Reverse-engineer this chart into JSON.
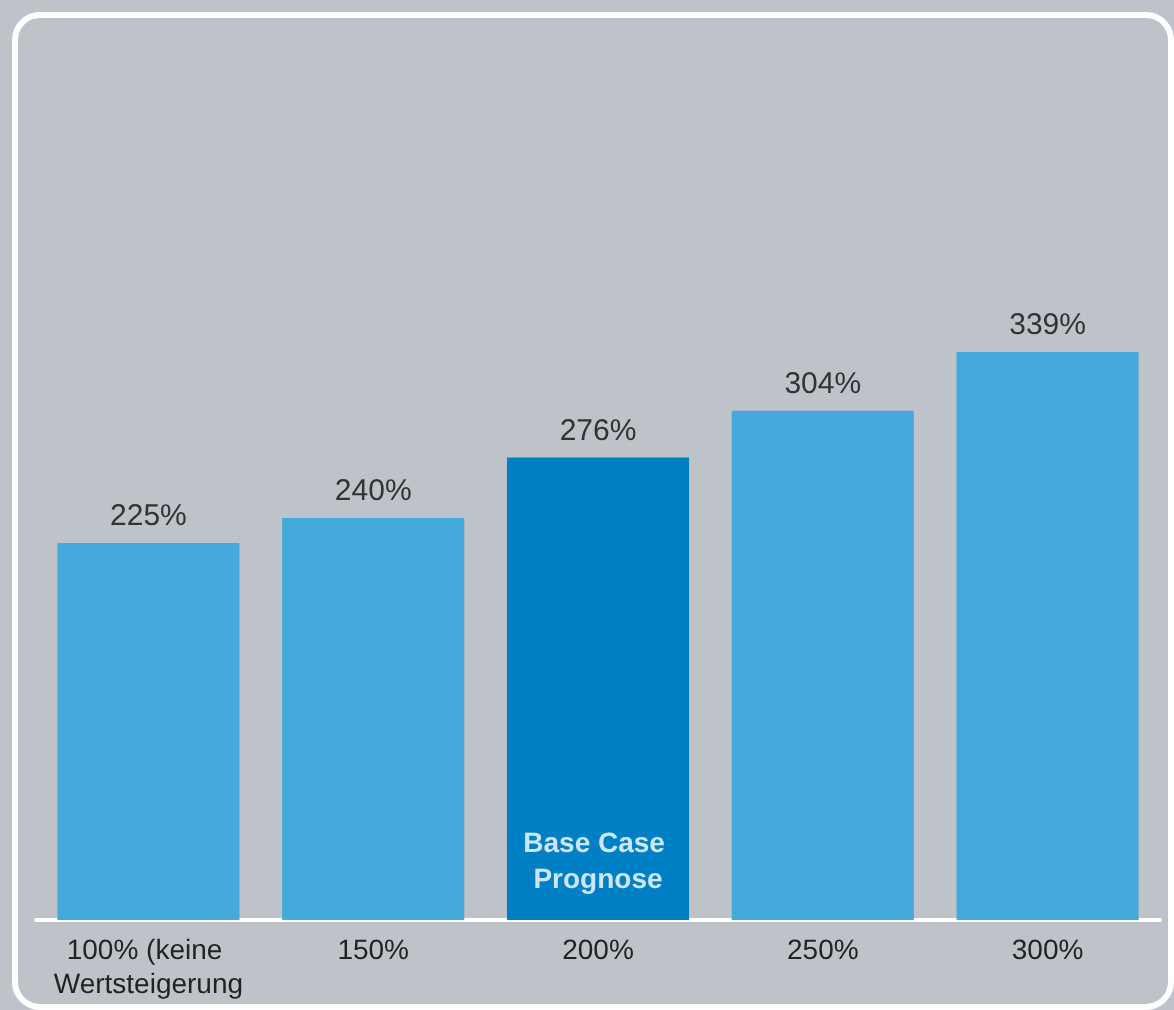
{
  "chart_data": {
    "type": "bar",
    "categories": [
      "100% (keine Wertsteigerung",
      "150%",
      "200%",
      "250%",
      "300%"
    ],
    "values": [
      225,
      240,
      276,
      304,
      339
    ],
    "value_labels": [
      "225%",
      "240%",
      "276%",
      "304%",
      "339%"
    ],
    "colors": [
      "#45a9dc",
      "#45a9dc",
      "#0080c4",
      "#45a9dc",
      "#45a9dc"
    ],
    "annotations": [
      "Base Case Prognose"
    ],
    "grid": false
  }
}
